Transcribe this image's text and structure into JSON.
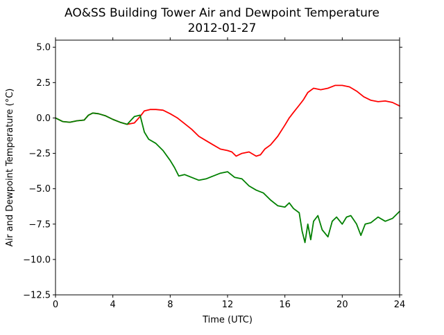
{
  "chart_data": {
    "type": "line",
    "title": "AO&SS Building Tower Air and Dewpoint Temperature",
    "subtitle": "2012-01-27",
    "xlabel": "Time (UTC)",
    "ylabel": "Air and Dewpoint Temperature (°C)",
    "xlim": [
      0,
      24
    ],
    "ylim": [
      -12.5,
      5.5
    ],
    "xticks": [
      0,
      4,
      8,
      12,
      16,
      20,
      24
    ],
    "yticks": [
      -12.5,
      -10.0,
      -7.5,
      -5.0,
      -2.5,
      0.0,
      2.5,
      5.0
    ],
    "ytick_labels": [
      "−12.5",
      "−10.0",
      "−7.5",
      "−5.0",
      "−2.5",
      "0.0",
      "2.5",
      "5.0"
    ],
    "grid": false,
    "legend": "none",
    "series": [
      {
        "color": "#ff0000",
        "x": [
          0,
          0.5,
          1,
          1.5,
          2,
          2.3,
          2.6,
          3,
          3.5,
          4,
          4.5,
          5,
          5.5,
          5.9,
          6.2,
          6.6,
          7,
          7.5,
          8,
          8.5,
          9,
          9.5,
          10,
          10.5,
          11,
          11.5,
          12,
          12.3,
          12.6,
          13,
          13.5,
          14,
          14.3,
          14.6,
          15,
          15.5,
          16,
          16.3,
          16.6,
          17,
          17.3,
          17.6,
          18,
          18.5,
          19,
          19.5,
          20,
          20.5,
          21,
          21.5,
          22,
          22.5,
          23,
          23.5,
          24
        ],
        "y": [
          0,
          -0.25,
          -0.3,
          -0.2,
          -0.15,
          0.2,
          0.35,
          0.3,
          0.15,
          -0.1,
          -0.3,
          -0.45,
          -0.35,
          0.1,
          0.5,
          0.6,
          0.6,
          0.55,
          0.3,
          0.0,
          -0.4,
          -0.8,
          -1.3,
          -1.6,
          -1.9,
          -2.2,
          -2.3,
          -2.4,
          -2.7,
          -2.5,
          -2.4,
          -2.7,
          -2.6,
          -2.2,
          -1.9,
          -1.3,
          -0.5,
          0.0,
          0.4,
          0.9,
          1.3,
          1.8,
          2.1,
          2.0,
          2.1,
          2.3,
          2.3,
          2.2,
          1.9,
          1.5,
          1.25,
          1.15,
          1.2,
          1.1,
          0.85
        ]
      },
      {
        "color": "#008000",
        "x": [
          0,
          0.5,
          1,
          1.5,
          2,
          2.3,
          2.6,
          3,
          3.5,
          4,
          4.5,
          5,
          5.5,
          5.9,
          6.2,
          6.5,
          7,
          7.5,
          8,
          8.3,
          8.6,
          9,
          9.5,
          10,
          10.5,
          11,
          11.5,
          12,
          12.5,
          13,
          13.5,
          14,
          14.5,
          15,
          15.5,
          16,
          16.3,
          16.6,
          17,
          17.2,
          17.4,
          17.6,
          17.8,
          18,
          18.3,
          18.6,
          19,
          19.3,
          19.6,
          20,
          20.3,
          20.6,
          21,
          21.3,
          21.6,
          22,
          22.5,
          23,
          23.5,
          24
        ],
        "y": [
          0,
          -0.25,
          -0.3,
          -0.2,
          -0.15,
          0.2,
          0.35,
          0.3,
          0.15,
          -0.1,
          -0.3,
          -0.45,
          0.1,
          0.2,
          -1.0,
          -1.5,
          -1.8,
          -2.3,
          -3.0,
          -3.5,
          -4.1,
          -4.0,
          -4.2,
          -4.4,
          -4.3,
          -4.1,
          -3.9,
          -3.8,
          -4.2,
          -4.3,
          -4.8,
          -5.1,
          -5.3,
          -5.8,
          -6.2,
          -6.3,
          -6.0,
          -6.4,
          -6.7,
          -8.0,
          -8.8,
          -7.5,
          -8.6,
          -7.3,
          -6.9,
          -7.9,
          -8.4,
          -7.3,
          -7.0,
          -7.5,
          -7.0,
          -6.9,
          -7.5,
          -8.3,
          -7.5,
          -7.4,
          -7.0,
          -7.3,
          -7.1,
          -6.6
        ]
      }
    ]
  }
}
